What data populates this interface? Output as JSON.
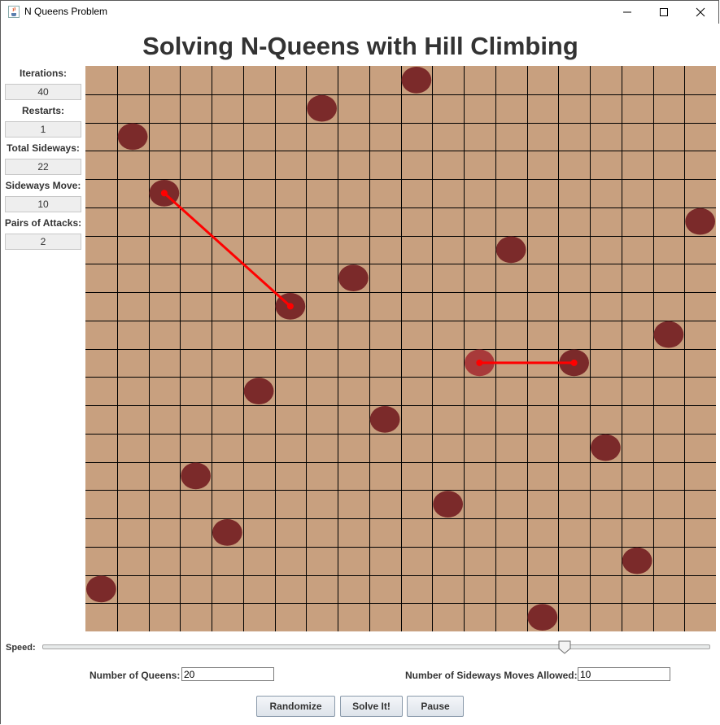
{
  "window": {
    "title": "N Queens Problem",
    "icon": "java-cup-icon",
    "controls": [
      "minimize-icon",
      "maximize-icon",
      "close-icon"
    ]
  },
  "heading": "Solving N-Queens with Hill Climbing",
  "stats": {
    "iterations_label": "Iterations:",
    "iterations": "40",
    "restarts_label": "Restarts:",
    "restarts": "1",
    "total_sideways_label": "Total Sideways:",
    "total_sideways": "22",
    "sideways_move_label": "Sideways Move:",
    "sideways_move": "10",
    "pairs_label": "Pairs of Attacks:",
    "pairs": "2"
  },
  "board": {
    "size": 20,
    "square_color": "#c8a07f",
    "grid_color": "#000000",
    "queen_color": "#7b2a2a",
    "highlight_queen_color": "#a83a3a",
    "attack_line_color": "#ff0000",
    "queens": [
      {
        "col": 10,
        "row": 0
      },
      {
        "col": 7,
        "row": 1
      },
      {
        "col": 1,
        "row": 2
      },
      {
        "col": 2,
        "row": 4
      },
      {
        "col": 19,
        "row": 5
      },
      {
        "col": 13,
        "row": 6
      },
      {
        "col": 8,
        "row": 7
      },
      {
        "col": 6,
        "row": 8
      },
      {
        "col": 18,
        "row": 9
      },
      {
        "col": 12,
        "row": 10,
        "highlight": true
      },
      {
        "col": 15,
        "row": 10
      },
      {
        "col": 5,
        "row": 11
      },
      {
        "col": 9,
        "row": 12
      },
      {
        "col": 16,
        "row": 13
      },
      {
        "col": 3,
        "row": 14
      },
      {
        "col": 11,
        "row": 15
      },
      {
        "col": 4,
        "row": 16
      },
      {
        "col": 17,
        "row": 17
      },
      {
        "col": 0,
        "row": 18
      },
      {
        "col": 14,
        "row": 19
      }
    ],
    "attacks": [
      {
        "from": {
          "col": 2,
          "row": 4
        },
        "to": {
          "col": 6,
          "row": 8
        }
      },
      {
        "from": {
          "col": 12,
          "row": 10
        },
        "to": {
          "col": 15,
          "row": 10
        }
      }
    ]
  },
  "speed": {
    "label": "Speed:",
    "value_fraction": 0.8
  },
  "fields": {
    "queens_label": "Number of Queens:",
    "queens_value": "20",
    "sideways_label": "Number of Sideways Moves Allowed:",
    "sideways_value": "10"
  },
  "buttons": {
    "randomize": "Randomize",
    "solve": "Solve It!",
    "pause": "Pause"
  }
}
